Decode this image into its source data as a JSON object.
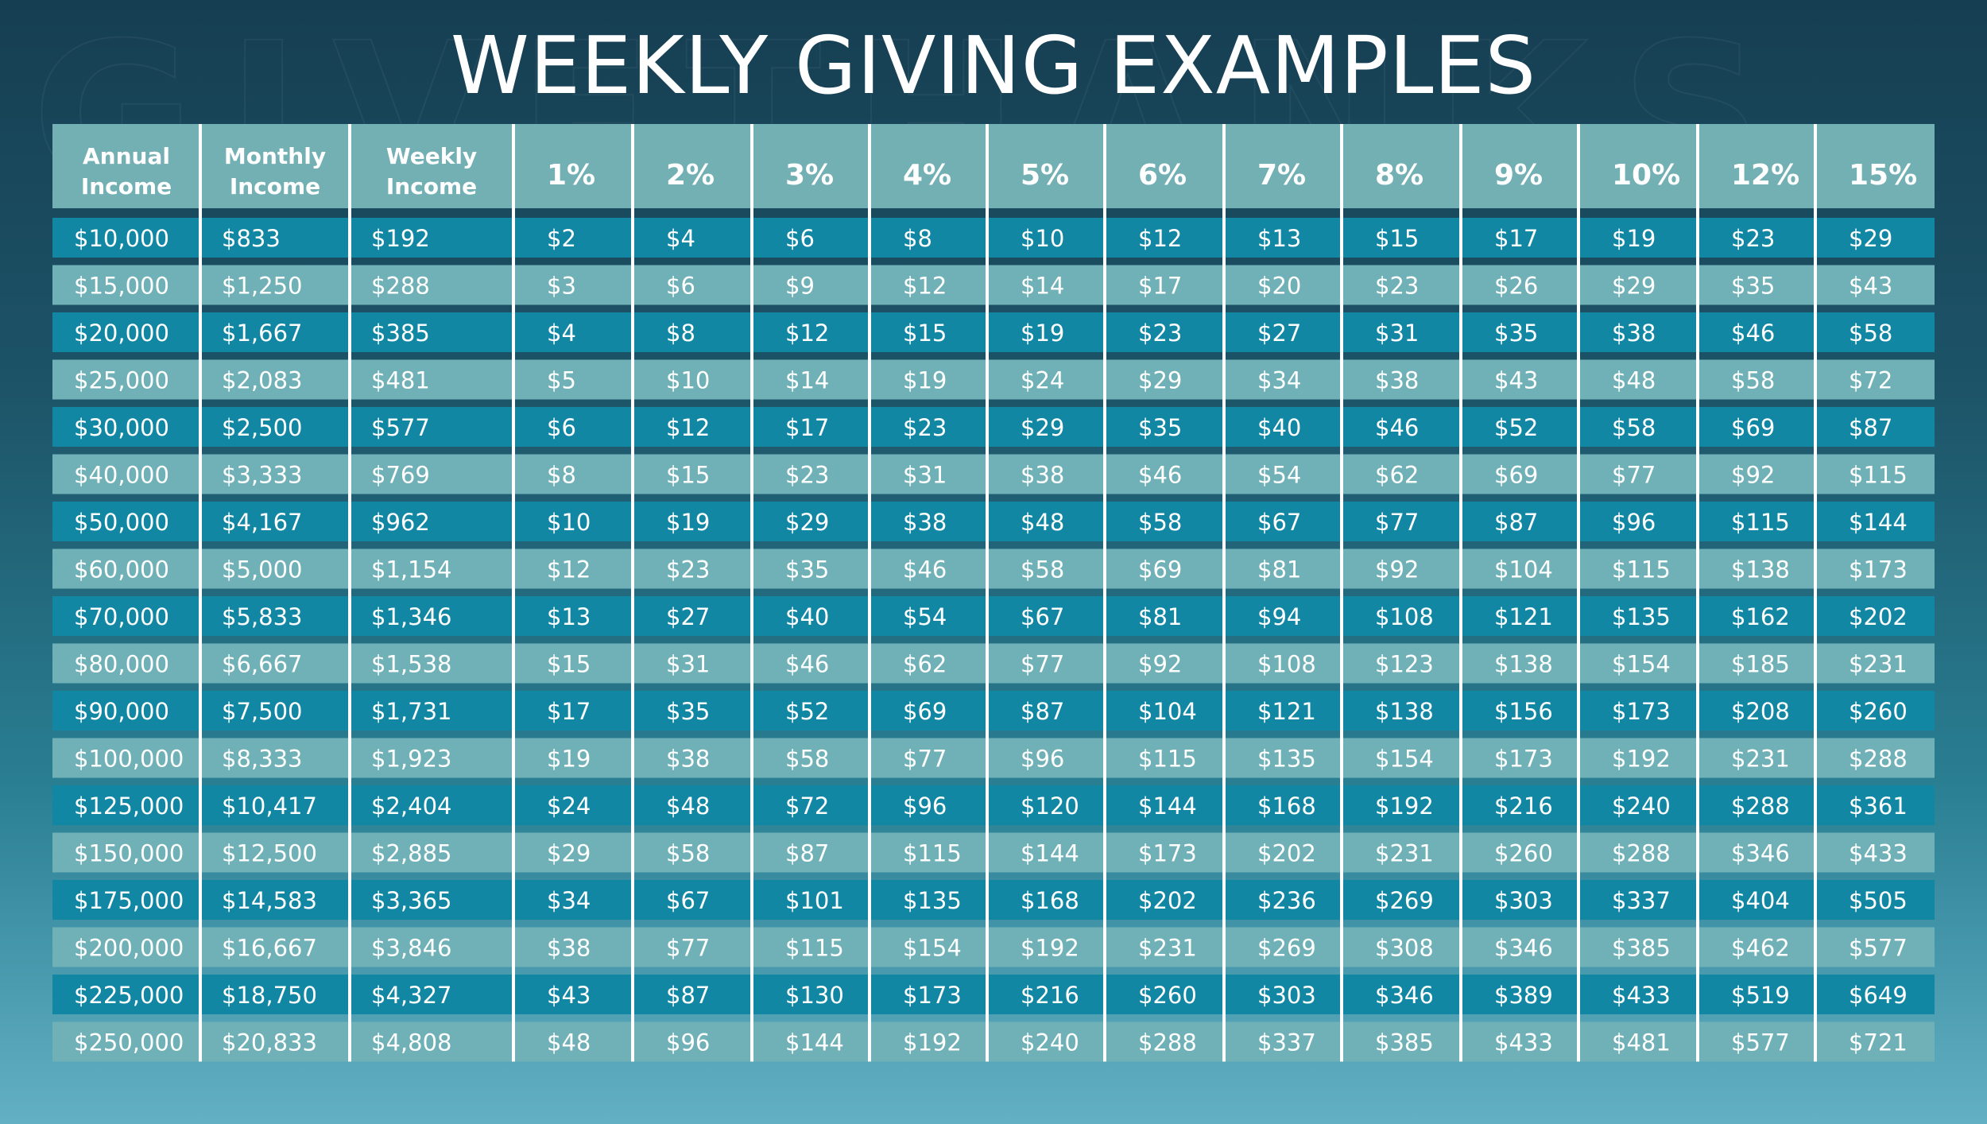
{
  "title": "WEEKLY GIVING EXAMPLES",
  "colors": {
    "header_bg": "#73b0b4",
    "row_dark": "#1287a4",
    "row_light": "#6fb1b6",
    "divider": "#ffffff",
    "text": "#ffffff"
  },
  "chart_data": {
    "type": "table",
    "title": "WEEKLY GIVING EXAMPLES",
    "columns": [
      [
        "Annual",
        "Income"
      ],
      [
        "Monthly",
        "Income"
      ],
      [
        "Weekly",
        "Income"
      ],
      [
        "1%"
      ],
      [
        "2%"
      ],
      [
        "3%"
      ],
      [
        "4%"
      ],
      [
        "5%"
      ],
      [
        "6%"
      ],
      [
        "7%"
      ],
      [
        "8%"
      ],
      [
        "9%"
      ],
      [
        "10%"
      ],
      [
        "12%"
      ],
      [
        "15%"
      ]
    ],
    "rows": [
      [
        "$10,000",
        "$833",
        "$192",
        "$2",
        "$4",
        "$6",
        "$8",
        "$10",
        "$12",
        "$13",
        "$15",
        "$17",
        "$19",
        "$23",
        "$29"
      ],
      [
        "$15,000",
        "$1,250",
        "$288",
        "$3",
        "$6",
        "$9",
        "$12",
        "$14",
        "$17",
        "$20",
        "$23",
        "$26",
        "$29",
        "$35",
        "$43"
      ],
      [
        "$20,000",
        "$1,667",
        "$385",
        "$4",
        "$8",
        "$12",
        "$15",
        "$19",
        "$23",
        "$27",
        "$31",
        "$35",
        "$38",
        "$46",
        "$58"
      ],
      [
        "$25,000",
        "$2,083",
        "$481",
        "$5",
        "$10",
        "$14",
        "$19",
        "$24",
        "$29",
        "$34",
        "$38",
        "$43",
        "$48",
        "$58",
        "$72"
      ],
      [
        "$30,000",
        "$2,500",
        "$577",
        "$6",
        "$12",
        "$17",
        "$23",
        "$29",
        "$35",
        "$40",
        "$46",
        "$52",
        "$58",
        "$69",
        "$87"
      ],
      [
        "$40,000",
        "$3,333",
        "$769",
        "$8",
        "$15",
        "$23",
        "$31",
        "$38",
        "$46",
        "$54",
        "$62",
        "$69",
        "$77",
        "$92",
        "$115"
      ],
      [
        "$50,000",
        "$4,167",
        "$962",
        "$10",
        "$19",
        "$29",
        "$38",
        "$48",
        "$58",
        "$67",
        "$77",
        "$87",
        "$96",
        "$115",
        "$144"
      ],
      [
        "$60,000",
        "$5,000",
        "$1,154",
        "$12",
        "$23",
        "$35",
        "$46",
        "$58",
        "$69",
        "$81",
        "$92",
        "$104",
        "$115",
        "$138",
        "$173"
      ],
      [
        "$70,000",
        "$5,833",
        "$1,346",
        "$13",
        "$27",
        "$40",
        "$54",
        "$67",
        "$81",
        "$94",
        "$108",
        "$121",
        "$135",
        "$162",
        "$202"
      ],
      [
        "$80,000",
        "$6,667",
        "$1,538",
        "$15",
        "$31",
        "$46",
        "$62",
        "$77",
        "$92",
        "$108",
        "$123",
        "$138",
        "$154",
        "$185",
        "$231"
      ],
      [
        "$90,000",
        "$7,500",
        "$1,731",
        "$17",
        "$35",
        "$52",
        "$69",
        "$87",
        "$104",
        "$121",
        "$138",
        "$156",
        "$173",
        "$208",
        "$260"
      ],
      [
        "$100,000",
        "$8,333",
        "$1,923",
        "$19",
        "$38",
        "$58",
        "$77",
        "$96",
        "$115",
        "$135",
        "$154",
        "$173",
        "$192",
        "$231",
        "$288"
      ],
      [
        "$125,000",
        "$10,417",
        "$2,404",
        "$24",
        "$48",
        "$72",
        "$96",
        "$120",
        "$144",
        "$168",
        "$192",
        "$216",
        "$240",
        "$288",
        "$361"
      ],
      [
        "$150,000",
        "$12,500",
        "$2,885",
        "$29",
        "$58",
        "$87",
        "$115",
        "$144",
        "$173",
        "$202",
        "$231",
        "$260",
        "$288",
        "$346",
        "$433"
      ],
      [
        "$175,000",
        "$14,583",
        "$3,365",
        "$34",
        "$67",
        "$101",
        "$135",
        "$168",
        "$202",
        "$236",
        "$269",
        "$303",
        "$337",
        "$404",
        "$505"
      ],
      [
        "$200,000",
        "$16,667",
        "$3,846",
        "$38",
        "$77",
        "$115",
        "$154",
        "$192",
        "$231",
        "$269",
        "$308",
        "$346",
        "$385",
        "$462",
        "$577"
      ],
      [
        "$225,000",
        "$18,750",
        "$4,327",
        "$43",
        "$87",
        "$130",
        "$173",
        "$216",
        "$260",
        "$303",
        "$346",
        "$389",
        "$433",
        "$519",
        "$649"
      ],
      [
        "$250,000",
        "$20,833",
        "$4,808",
        "$48",
        "$96",
        "$144",
        "$192",
        "$240",
        "$288",
        "$337",
        "$385",
        "$433",
        "$481",
        "$577",
        "$721"
      ]
    ]
  }
}
